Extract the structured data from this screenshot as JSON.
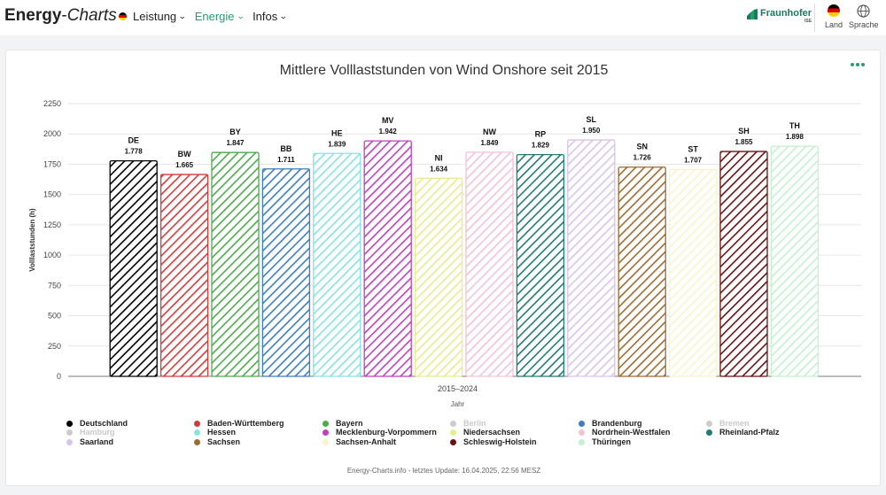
{
  "header": {
    "brand_bold": "Energy",
    "brand_dash": "-",
    "brand_italic": "Charts",
    "nav": [
      {
        "label": "Leistung",
        "active": false
      },
      {
        "label": "Energie",
        "active": true
      },
      {
        "label": "Infos",
        "active": false
      }
    ],
    "org_name": "Fraunhofer",
    "org_sub": "ISE",
    "country_label": "Land",
    "language_label": "Sprache"
  },
  "chart_data": {
    "type": "bar",
    "title": "Mittlere Volllaststunden von Wind Onshore seit 2015",
    "xlabel": "Jahr",
    "ylabel": "Volllaststunden (h)",
    "x_category": "2015–2024",
    "ylim": [
      0,
      2250
    ],
    "yticks": [
      0,
      250,
      500,
      750,
      1000,
      1250,
      1500,
      1750,
      2000,
      2250
    ],
    "bars": [
      {
        "code": "DE",
        "value": 1778,
        "label": "1.778",
        "color": "#000000"
      },
      {
        "code": "BW",
        "value": 1665,
        "label": "1.665",
        "color": "#d23b3b"
      },
      {
        "code": "BY",
        "value": 1847,
        "label": "1.847",
        "color": "#4daa4d"
      },
      {
        "code": "BB",
        "value": 1711,
        "label": "1.711",
        "color": "#3b7ec2"
      },
      {
        "code": "HE",
        "value": 1839,
        "label": "1.839",
        "color": "#86e3e3"
      },
      {
        "code": "MV",
        "value": 1942,
        "label": "1.942",
        "color": "#c03fc0"
      },
      {
        "code": "NI",
        "value": 1634,
        "label": "1.634",
        "color": "#e2ef8e"
      },
      {
        "code": "NW",
        "value": 1849,
        "label": "1.849",
        "color": "#f2c3d2"
      },
      {
        "code": "RP",
        "value": 1829,
        "label": "1.829",
        "color": "#1f7a78"
      },
      {
        "code": "SL",
        "value": 1950,
        "label": "1.950",
        "color": "#d9c4ec"
      },
      {
        "code": "SN",
        "value": 1726,
        "label": "1.726",
        "color": "#9c6b32"
      },
      {
        "code": "ST",
        "value": 1707,
        "label": "1.707",
        "color": "#f7f5cc"
      },
      {
        "code": "SH",
        "value": 1855,
        "label": "1.855",
        "color": "#6a1212"
      },
      {
        "code": "TH",
        "value": 1898,
        "label": "1.898",
        "color": "#c2f2ce"
      }
    ],
    "legend": [
      {
        "name": "Deutschland",
        "color": "#000000",
        "hidden": false
      },
      {
        "name": "Baden-Württemberg",
        "color": "#d23b3b",
        "hidden": false
      },
      {
        "name": "Bayern",
        "color": "#4daa4d",
        "hidden": false
      },
      {
        "name": "Berlin",
        "color": "#cccccc",
        "hidden": true
      },
      {
        "name": "Brandenburg",
        "color": "#3b7ec2",
        "hidden": false
      },
      {
        "name": "Bremen",
        "color": "#cccccc",
        "hidden": true
      },
      {
        "name": "Hamburg",
        "color": "#cccccc",
        "hidden": true
      },
      {
        "name": "Hessen",
        "color": "#86e3e3",
        "hidden": false
      },
      {
        "name": "Mecklenburg-Vorpommern",
        "color": "#c03fc0",
        "hidden": false
      },
      {
        "name": "Niedersachsen",
        "color": "#e2ef8e",
        "hidden": false
      },
      {
        "name": "Nordrhein-Westfalen",
        "color": "#f2c3d2",
        "hidden": false
      },
      {
        "name": "Rheinland-Pfalz",
        "color": "#1f7a78",
        "hidden": false
      },
      {
        "name": "Saarland",
        "color": "#d9c4ec",
        "hidden": false
      },
      {
        "name": "Sachsen",
        "color": "#9c6b32",
        "hidden": false
      },
      {
        "name": "Sachsen-Anhalt",
        "color": "#f7f5cc",
        "hidden": false
      },
      {
        "name": "Schleswig-Holstein",
        "color": "#6a1212",
        "hidden": false
      },
      {
        "name": "Thüringen",
        "color": "#c2f2ce",
        "hidden": false
      }
    ],
    "grid": true,
    "credits": "Energy-Charts.info - letztes Update: 16.04.2025, 22:56 MESZ"
  }
}
